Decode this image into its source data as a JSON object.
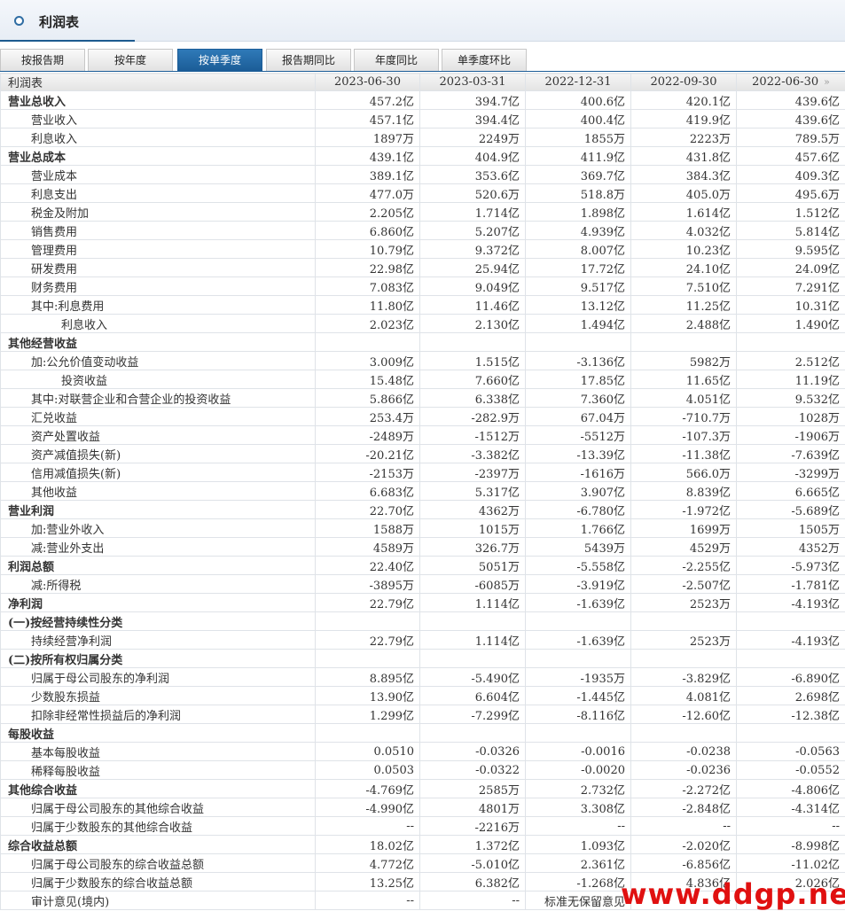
{
  "header": {
    "title": "利润表"
  },
  "tabs": [
    {
      "label": "按报告期",
      "active": false
    },
    {
      "label": "按年度",
      "active": false
    },
    {
      "label": "按单季度",
      "active": true
    },
    {
      "label": "报告期同比",
      "active": false
    },
    {
      "label": "年度同比",
      "active": false
    },
    {
      "label": "单季度环比",
      "active": false
    }
  ],
  "table": {
    "corner": "利润表",
    "columns": [
      "2023-06-30",
      "2023-03-31",
      "2022-12-31",
      "2022-09-30",
      "2022-06-30"
    ],
    "rows": [
      {
        "label": "营业总收入",
        "level": 0,
        "values": [
          "457.2亿",
          "394.7亿",
          "400.6亿",
          "420.1亿",
          "439.6亿"
        ]
      },
      {
        "label": "营业收入",
        "level": 1,
        "values": [
          "457.1亿",
          "394.4亿",
          "400.4亿",
          "419.9亿",
          "439.6亿"
        ]
      },
      {
        "label": "利息收入",
        "level": 1,
        "values": [
          "1897万",
          "2249万",
          "1855万",
          "2223万",
          "789.5万"
        ]
      },
      {
        "label": "营业总成本",
        "level": 0,
        "values": [
          "439.1亿",
          "404.9亿",
          "411.9亿",
          "431.8亿",
          "457.6亿"
        ]
      },
      {
        "label": "营业成本",
        "level": 1,
        "values": [
          "389.1亿",
          "353.6亿",
          "369.7亿",
          "384.3亿",
          "409.3亿"
        ]
      },
      {
        "label": "利息支出",
        "level": 1,
        "values": [
          "477.0万",
          "520.6万",
          "518.8万",
          "405.0万",
          "495.6万"
        ]
      },
      {
        "label": "税金及附加",
        "level": 1,
        "values": [
          "2.205亿",
          "1.714亿",
          "1.898亿",
          "1.614亿",
          "1.512亿"
        ]
      },
      {
        "label": "销售费用",
        "level": 1,
        "values": [
          "6.860亿",
          "5.207亿",
          "4.939亿",
          "4.032亿",
          "5.814亿"
        ]
      },
      {
        "label": "管理费用",
        "level": 1,
        "values": [
          "10.79亿",
          "9.372亿",
          "8.007亿",
          "10.23亿",
          "9.595亿"
        ]
      },
      {
        "label": "研发费用",
        "level": 1,
        "values": [
          "22.98亿",
          "25.94亿",
          "17.72亿",
          "24.10亿",
          "24.09亿"
        ]
      },
      {
        "label": "财务费用",
        "level": 1,
        "values": [
          "7.083亿",
          "9.049亿",
          "9.517亿",
          "7.510亿",
          "7.291亿"
        ]
      },
      {
        "label": "其中:利息费用",
        "level": 1,
        "values": [
          "11.80亿",
          "11.46亿",
          "13.12亿",
          "11.25亿",
          "10.31亿"
        ]
      },
      {
        "label": "利息收入",
        "level": 2,
        "values": [
          "2.023亿",
          "2.130亿",
          "1.494亿",
          "2.488亿",
          "1.490亿"
        ]
      },
      {
        "label": "其他经营收益",
        "level": 0,
        "values": [
          "",
          "",
          "",
          "",
          ""
        ]
      },
      {
        "label": "加:公允价值变动收益",
        "level": 1,
        "values": [
          "3.009亿",
          "1.515亿",
          "-3.136亿",
          "5982万",
          "2.512亿"
        ]
      },
      {
        "label": "投资收益",
        "level": 2,
        "values": [
          "15.48亿",
          "7.660亿",
          "17.85亿",
          "11.65亿",
          "11.19亿"
        ]
      },
      {
        "label": "其中:对联营企业和合营企业的投资收益",
        "level": 1,
        "values": [
          "5.866亿",
          "6.338亿",
          "7.360亿",
          "4.051亿",
          "9.532亿"
        ]
      },
      {
        "label": "汇兑收益",
        "level": 1,
        "values": [
          "253.4万",
          "-282.9万",
          "67.04万",
          "-710.7万",
          "1028万"
        ]
      },
      {
        "label": "资产处置收益",
        "level": 1,
        "values": [
          "-2489万",
          "-1512万",
          "-5512万",
          "-107.3万",
          "-1906万"
        ]
      },
      {
        "label": "资产减值损失(新)",
        "level": 1,
        "values": [
          "-20.21亿",
          "-3.382亿",
          "-13.39亿",
          "-11.38亿",
          "-7.639亿"
        ]
      },
      {
        "label": "信用减值损失(新)",
        "level": 1,
        "values": [
          "-2153万",
          "-2397万",
          "-1616万",
          "566.0万",
          "-3299万"
        ]
      },
      {
        "label": "其他收益",
        "level": 1,
        "values": [
          "6.683亿",
          "5.317亿",
          "3.907亿",
          "8.839亿",
          "6.665亿"
        ]
      },
      {
        "label": "营业利润",
        "level": 0,
        "values": [
          "22.70亿",
          "4362万",
          "-6.780亿",
          "-1.972亿",
          "-5.689亿"
        ]
      },
      {
        "label": "加:营业外收入",
        "level": 1,
        "values": [
          "1588万",
          "1015万",
          "1.766亿",
          "1699万",
          "1505万"
        ]
      },
      {
        "label": "减:营业外支出",
        "level": 1,
        "values": [
          "4589万",
          "326.7万",
          "5439万",
          "4529万",
          "4352万"
        ]
      },
      {
        "label": "利润总额",
        "level": 0,
        "values": [
          "22.40亿",
          "5051万",
          "-5.558亿",
          "-2.255亿",
          "-5.973亿"
        ]
      },
      {
        "label": "减:所得税",
        "level": 1,
        "values": [
          "-3895万",
          "-6085万",
          "-3.919亿",
          "-2.507亿",
          "-1.781亿"
        ]
      },
      {
        "label": "净利润",
        "level": 0,
        "values": [
          "22.79亿",
          "1.114亿",
          "-1.639亿",
          "2523万",
          "-4.193亿"
        ]
      },
      {
        "label": "(一)按经营持续性分类",
        "level": 0,
        "values": [
          "",
          "",
          "",
          "",
          ""
        ]
      },
      {
        "label": "持续经营净利润",
        "level": 1,
        "values": [
          "22.79亿",
          "1.114亿",
          "-1.639亿",
          "2523万",
          "-4.193亿"
        ]
      },
      {
        "label": "(二)按所有权归属分类",
        "level": 0,
        "values": [
          "",
          "",
          "",
          "",
          ""
        ]
      },
      {
        "label": "归属于母公司股东的净利润",
        "level": 1,
        "values": [
          "8.895亿",
          "-5.490亿",
          "-1935万",
          "-3.829亿",
          "-6.890亿"
        ]
      },
      {
        "label": "少数股东损益",
        "level": 1,
        "values": [
          "13.90亿",
          "6.604亿",
          "-1.445亿",
          "4.081亿",
          "2.698亿"
        ]
      },
      {
        "label": "扣除非经常性损益后的净利润",
        "level": 1,
        "values": [
          "1.299亿",
          "-7.299亿",
          "-8.116亿",
          "-12.60亿",
          "-12.38亿"
        ]
      },
      {
        "label": "每股收益",
        "level": 0,
        "values": [
          "",
          "",
          "",
          "",
          ""
        ]
      },
      {
        "label": "基本每股收益",
        "level": 1,
        "values": [
          "0.0510",
          "-0.0326",
          "-0.0016",
          "-0.0238",
          "-0.0563"
        ]
      },
      {
        "label": "稀释每股收益",
        "level": 1,
        "values": [
          "0.0503",
          "-0.0322",
          "-0.0020",
          "-0.0236",
          "-0.0552"
        ]
      },
      {
        "label": "其他综合收益",
        "level": 0,
        "values": [
          "-4.769亿",
          "2585万",
          "2.732亿",
          "-2.272亿",
          "-4.806亿"
        ]
      },
      {
        "label": "归属于母公司股东的其他综合收益",
        "level": 1,
        "values": [
          "-4.990亿",
          "4801万",
          "3.308亿",
          "-2.848亿",
          "-4.314亿"
        ]
      },
      {
        "label": "归属于少数股东的其他综合收益",
        "level": 1,
        "values": [
          "--",
          "-2216万",
          "--",
          "--",
          "--"
        ]
      },
      {
        "label": "综合收益总额",
        "level": 0,
        "values": [
          "18.02亿",
          "1.372亿",
          "1.093亿",
          "-2.020亿",
          "-8.998亿"
        ]
      },
      {
        "label": "归属于母公司股东的综合收益总额",
        "level": 1,
        "values": [
          "4.772亿",
          "-5.010亿",
          "2.361亿",
          "-6.856亿",
          "-11.02亿"
        ]
      },
      {
        "label": "归属于少数股东的综合收益总额",
        "level": 1,
        "values": [
          "13.25亿",
          "6.382亿",
          "-1.268亿",
          "4.836亿",
          "2.026亿"
        ]
      },
      {
        "label": "审计意见(境内)",
        "level": 1,
        "values": [
          "--",
          "--",
          "标准无保留意见",
          "--",
          "--"
        ]
      }
    ]
  },
  "scroll_right_icon": "double-chevron-right-icon",
  "watermark": "www.ddgp.net"
}
